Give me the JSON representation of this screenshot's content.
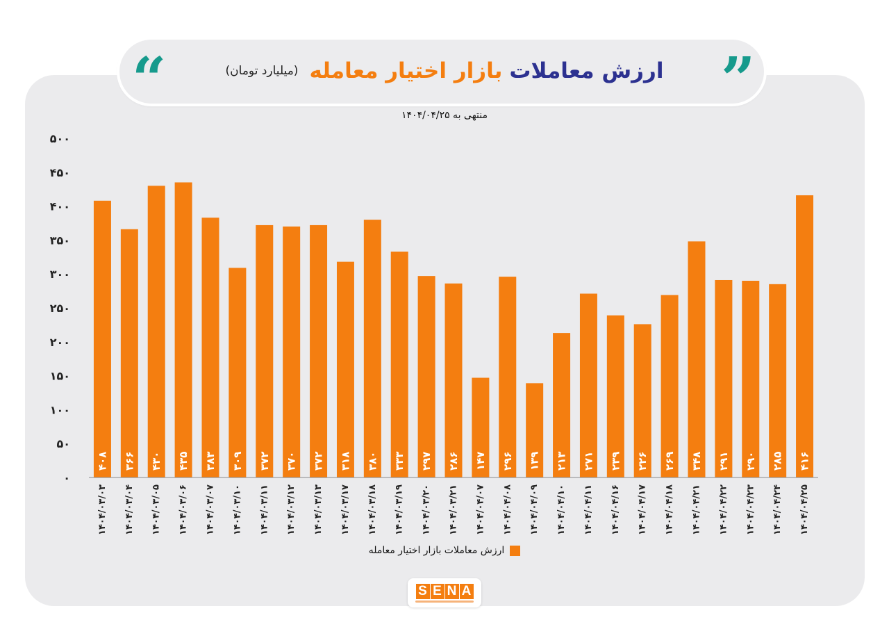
{
  "header": {
    "title_part1": "ارزش معاملات",
    "title_part2": "بازار اختیار معامله",
    "unit": "(میلیارد تومان)",
    "quote_open": "“",
    "quote_close": "”"
  },
  "subtitle": "منتهی به ۱۴۰۴/۰۴/۲۵",
  "brand": {
    "logo_text": "SENA",
    "logo_letters": [
      "S",
      "E",
      "N",
      "A"
    ]
  },
  "colors": {
    "bar": "#f47e10",
    "title_dark": "#2c3190",
    "title_accent": "#f47e10",
    "quote": "#169a8c"
  },
  "chart_data": {
    "type": "bar",
    "title": "ارزش معاملات بازار اختیار معامله",
    "ylim": [
      0,
      500
    ],
    "y_ticks": [
      0,
      50,
      100,
      150,
      200,
      250,
      300,
      350,
      400,
      450,
      500
    ],
    "y_tick_labels": [
      "۰",
      "۵۰",
      "۱۰۰",
      "۱۵۰",
      "۲۰۰",
      "۲۵۰",
      "۳۰۰",
      "۳۵۰",
      "۴۰۰",
      "۴۵۰",
      "۵۰۰"
    ],
    "categories": [
      "۱۴۰۴/۰۳/۰۳",
      "۱۴۰۴/۰۳/۰۴",
      "۱۴۰۴/۰۳/۰۵",
      "۱۴۰۴/۰۳/۰۶",
      "۱۴۰۴/۰۳/۰۷",
      "۱۴۰۴/۰۳/۱۰",
      "۱۴۰۴/۰۳/۱۱",
      "۱۴۰۴/۰۳/۱۲",
      "۱۴۰۴/۰۳/۱۳",
      "۱۴۰۴/۰۳/۱۷",
      "۱۴۰۴/۰۳/۱۸",
      "۱۴۰۴/۰۳/۱۹",
      "۱۴۰۴/۰۳/۲۰",
      "۱۴۰۴/۰۳/۲۱",
      "۱۴۰۴/۰۴/۰۷",
      "۱۴۰۴/۰۴/۰۸",
      "۱۴۰۴/۰۴/۰۹",
      "۱۴۰۴/۰۴/۱۰",
      "۱۴۰۴/۰۴/۱۱",
      "۱۴۰۴/۰۴/۱۶",
      "۱۴۰۴/۰۴/۱۷",
      "۱۴۰۴/۰۴/۱۸",
      "۱۴۰۴/۰۴/۲۱",
      "۱۴۰۴/۰۴/۲۲",
      "۱۴۰۴/۰۴/۲۳",
      "۱۴۰۴/۰۴/۲۴",
      "۱۴۰۴/۰۴/۲۵"
    ],
    "values": [
      408,
      366,
      430,
      435,
      383,
      309,
      372,
      370,
      372,
      318,
      380,
      333,
      297,
      286,
      147,
      296,
      139,
      213,
      271,
      239,
      226,
      269,
      348,
      291,
      290,
      285,
      416
    ],
    "value_labels": [
      "۴۰۸",
      "۳۶۶",
      "۴۳۰",
      "۴۳۵",
      "۳۸۳",
      "۳۰۹",
      "۳۷۲",
      "۳۷۰",
      "۳۷۲",
      "۳۱۸",
      "۳۸۰",
      "۳۳۳",
      "۲۹۷",
      "۲۸۶",
      "۱۴۷",
      "۲۹۶",
      "۱۳۹",
      "۲۱۳",
      "۲۷۱",
      "۲۳۹",
      "۲۲۶",
      "۲۶۹",
      "۳۴۸",
      "۲۹۱",
      "۲۹۰",
      "۲۸۵",
      "۴۱۶"
    ],
    "series": [
      {
        "name": "ارزش معاملات بازار اختیار معامله",
        "color": "#f47e10"
      }
    ],
    "legend": "bottom-center",
    "grid": false
  }
}
